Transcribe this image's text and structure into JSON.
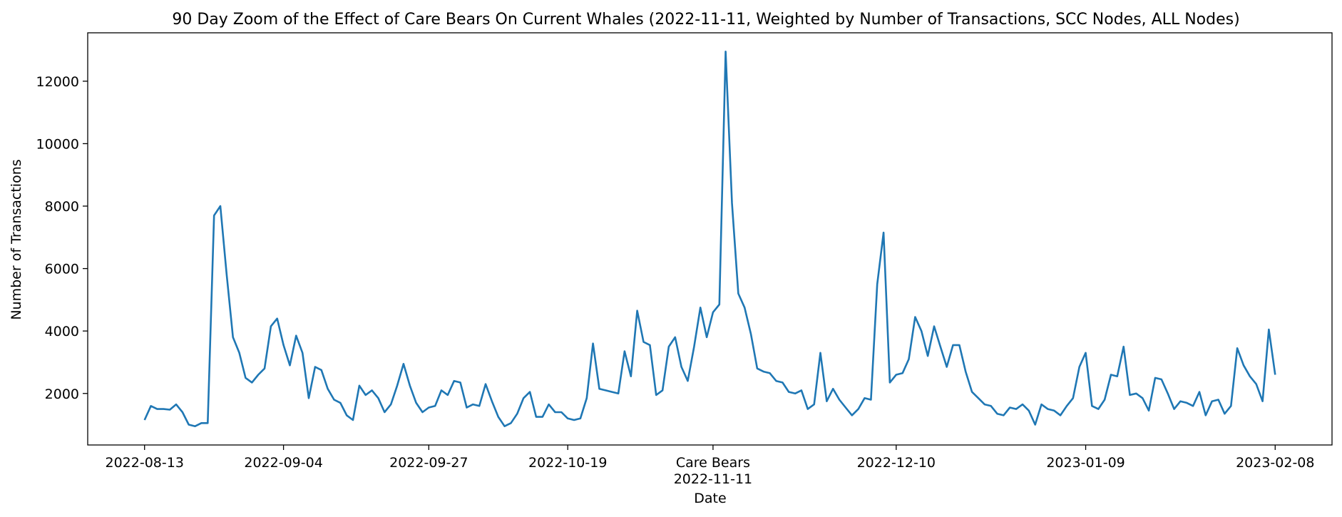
{
  "chart_data": {
    "type": "line",
    "title": "90 Day Zoom of the Effect of Care Bears On Current Whales (2022-11-11, Weighted by Number of Transactions, SCC Nodes, ALL Nodes)",
    "xlabel": "Date",
    "ylabel": "Number of Transactions",
    "xlim": [
      "2022-08-04",
      "2023-02-17"
    ],
    "ylim": [
      350,
      13550
    ],
    "grid": false,
    "legend": "none",
    "line_color": "#1f77b4",
    "x_ticks": [
      {
        "date": "2022-08-13",
        "label": "2022-08-13"
      },
      {
        "date": "2022-09-04",
        "label": "2022-09-04"
      },
      {
        "date": "2022-09-27",
        "label": "2022-09-27"
      },
      {
        "date": "2022-10-19",
        "label": "2022-10-19"
      },
      {
        "date": "2022-11-11",
        "label": "Care Bears",
        "sublabel": "2022-11-11"
      },
      {
        "date": "2022-12-10",
        "label": "2022-12-10"
      },
      {
        "date": "2023-01-09",
        "label": "2023-01-09"
      },
      {
        "date": "2023-02-08",
        "label": "2023-02-08"
      }
    ],
    "y_ticks": [
      2000,
      4000,
      6000,
      8000,
      10000,
      12000
    ],
    "series": [
      {
        "x": [
          "2022-08-13",
          "2022-08-14",
          "2022-08-15",
          "2022-08-16",
          "2022-08-17",
          "2022-08-18",
          "2022-08-19",
          "2022-08-20",
          "2022-08-21",
          "2022-08-22",
          "2022-08-23",
          "2022-08-24",
          "2022-08-25",
          "2022-08-26",
          "2022-08-27",
          "2022-08-28",
          "2022-08-29",
          "2022-08-30",
          "2022-08-31",
          "2022-09-01",
          "2022-09-02",
          "2022-09-03",
          "2022-09-04",
          "2022-09-05",
          "2022-09-06",
          "2022-09-07",
          "2022-09-08",
          "2022-09-09",
          "2022-09-10",
          "2022-09-11",
          "2022-09-12",
          "2022-09-13",
          "2022-09-14",
          "2022-09-15",
          "2022-09-16",
          "2022-09-17",
          "2022-09-18",
          "2022-09-19",
          "2022-09-20",
          "2022-09-21",
          "2022-09-22",
          "2022-09-23",
          "2022-09-24",
          "2022-09-25",
          "2022-09-26",
          "2022-09-27",
          "2022-09-28",
          "2022-09-29",
          "2022-09-30",
          "2022-10-01",
          "2022-10-02",
          "2022-10-03",
          "2022-10-04",
          "2022-10-05",
          "2022-10-06",
          "2022-10-07",
          "2022-10-08",
          "2022-10-09",
          "2022-10-10",
          "2022-10-11",
          "2022-10-12",
          "2022-10-13",
          "2022-10-14",
          "2022-10-15",
          "2022-10-16",
          "2022-10-17",
          "2022-10-18",
          "2022-10-19",
          "2022-10-20",
          "2022-10-21",
          "2022-10-22",
          "2022-10-23",
          "2022-10-24",
          "2022-10-25",
          "2022-10-26",
          "2022-10-27",
          "2022-10-28",
          "2022-10-29",
          "2022-10-30",
          "2022-10-31",
          "2022-11-01",
          "2022-11-02",
          "2022-11-03",
          "2022-11-04",
          "2022-11-05",
          "2022-11-06",
          "2022-11-07",
          "2022-11-08",
          "2022-11-09",
          "2022-11-10",
          "2022-11-11",
          "2022-11-12",
          "2022-11-13",
          "2022-11-14",
          "2022-11-15",
          "2022-11-16",
          "2022-11-17",
          "2022-11-18",
          "2022-11-19",
          "2022-11-20",
          "2022-11-21",
          "2022-11-22",
          "2022-11-23",
          "2022-11-24",
          "2022-11-25",
          "2022-11-26",
          "2022-11-27",
          "2022-11-28",
          "2022-11-29",
          "2022-11-30",
          "2022-12-01",
          "2022-12-02",
          "2022-12-03",
          "2022-12-04",
          "2022-12-05",
          "2022-12-06",
          "2022-12-07",
          "2022-12-08",
          "2022-12-09",
          "2022-12-10",
          "2022-12-11",
          "2022-12-12",
          "2022-12-13",
          "2022-12-14",
          "2022-12-15",
          "2022-12-16",
          "2022-12-17",
          "2022-12-18",
          "2022-12-19",
          "2022-12-20",
          "2022-12-21",
          "2022-12-22",
          "2022-12-23",
          "2022-12-24",
          "2022-12-25",
          "2022-12-26",
          "2022-12-27",
          "2022-12-28",
          "2022-12-29",
          "2022-12-30",
          "2022-12-31",
          "2023-01-01",
          "2023-01-02",
          "2023-01-03",
          "2023-01-04",
          "2023-01-05",
          "2023-01-06",
          "2023-01-07",
          "2023-01-08",
          "2023-01-09",
          "2023-01-10",
          "2023-01-11",
          "2023-01-12",
          "2023-01-13",
          "2023-01-14",
          "2023-01-15",
          "2023-01-16",
          "2023-01-17",
          "2023-01-18",
          "2023-01-19",
          "2023-01-20",
          "2023-01-21",
          "2023-01-22",
          "2023-01-23",
          "2023-01-24",
          "2023-01-25",
          "2023-01-26",
          "2023-01-27",
          "2023-01-28",
          "2023-01-29",
          "2023-01-30",
          "2023-01-31",
          "2023-02-01",
          "2023-02-02",
          "2023-02-03",
          "2023-02-04",
          "2023-02-05",
          "2023-02-06",
          "2023-02-07",
          "2023-02-08"
        ],
        "values": [
          1150,
          1600,
          1500,
          1500,
          1480,
          1650,
          1400,
          1000,
          950,
          1050,
          1050,
          7700,
          8000,
          5800,
          3800,
          3300,
          2500,
          2350,
          2600,
          2800,
          4150,
          4400,
          3550,
          2900,
          3850,
          3300,
          1850,
          2850,
          2750,
          2150,
          1800,
          1700,
          1300,
          1150,
          2250,
          1950,
          2100,
          1850,
          1400,
          1650,
          2250,
          2950,
          2250,
          1700,
          1400,
          1550,
          1600,
          2100,
          1950,
          2400,
          2350,
          1550,
          1650,
          1600,
          2300,
          1750,
          1250,
          950,
          1050,
          1350,
          1850,
          2050,
          1250,
          1250,
          1650,
          1400,
          1400,
          1200,
          1150,
          1200,
          1850,
          3600,
          2150,
          2100,
          2050,
          2000,
          3350,
          2550,
          4650,
          3650,
          3550,
          1950,
          2100,
          3500,
          3800,
          2850,
          2400,
          3500,
          4750,
          3800,
          4600,
          4850,
          12950,
          8100,
          5200,
          4750,
          3900,
          2800,
          2700,
          2650,
          2400,
          2350,
          2050,
          2000,
          2100,
          1500,
          1650,
          3300,
          1750,
          2150,
          1800,
          1550,
          1300,
          1500,
          1850,
          1800,
          5500,
          7150,
          2350,
          2600,
          2650,
          3100,
          4450,
          4000,
          3200,
          4150,
          3500,
          2850,
          3550,
          3550,
          2700,
          2050,
          1850,
          1650,
          1600,
          1350,
          1300,
          1550,
          1500,
          1650,
          1450,
          1000,
          1650,
          1500,
          1450,
          1300,
          1600,
          1850,
          2850,
          3300,
          1600,
          1500,
          1800,
          2600,
          2550,
          3500,
          1950,
          2000,
          1850,
          1450,
          2500,
          2450,
          2000,
          1500,
          1750,
          1700,
          1600,
          2050,
          1300,
          1750,
          1800,
          1350,
          1600,
          3450,
          2900,
          2550,
          2300,
          1750,
          4050,
          2600
        ]
      }
    ]
  }
}
